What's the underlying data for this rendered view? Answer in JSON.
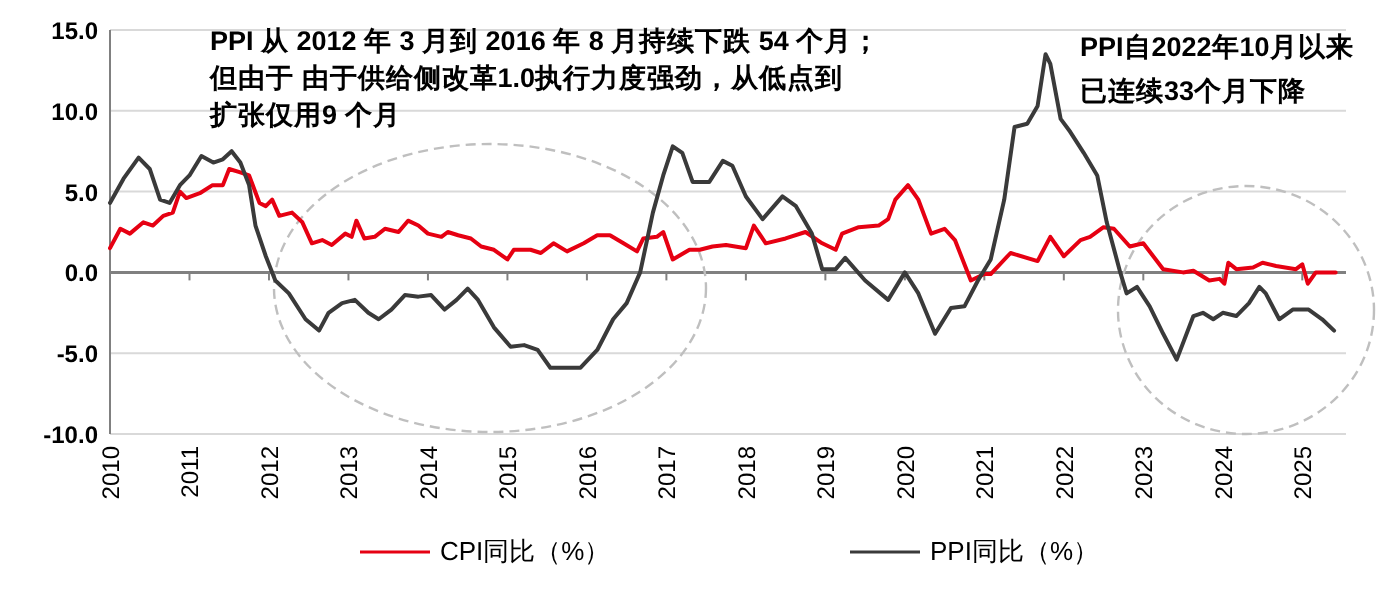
{
  "chart_data": {
    "type": "line",
    "xlim": [
      2010,
      2025.55
    ],
    "xticks": [
      2010,
      2011,
      2012,
      2013,
      2014,
      2015,
      2016,
      2017,
      2018,
      2019,
      2020,
      2021,
      2022,
      2023,
      2024,
      2025
    ],
    "ylim": [
      -10,
      15
    ],
    "yticks": [
      {
        "value": -10,
        "label": "-10.0"
      },
      {
        "value": -5,
        "label": "-5.0"
      },
      {
        "value": 0,
        "label": "0.0"
      },
      {
        "value": 5,
        "label": "5.0"
      },
      {
        "value": 10,
        "label": "10.0"
      },
      {
        "value": 15,
        "label": "15.0"
      }
    ],
    "grid": "y",
    "legend": "bottom",
    "marker": "none",
    "line_style": "solid",
    "annotations": [
      "PPI 从 2012 年 3 月到 2016 年 8 月持续下跌 54 个月；",
      "但由于 由于供给侧改革1.0执行力度强劲，从低点到",
      "扩张仅用9 个月",
      "PPI自2022年10月以来",
      "已连续33个月下降"
    ],
    "series": [
      {
        "name": "CPI同比（%）",
        "color": "#e60012",
        "x": [
          2010.0,
          2010.13,
          2010.25,
          2010.42,
          2010.54,
          2010.67,
          2010.79,
          2010.88,
          2010.96,
          2011.13,
          2011.29,
          2011.42,
          2011.5,
          2011.63,
          2011.75,
          2011.88,
          2011.96,
          2012.04,
          2012.13,
          2012.29,
          2012.42,
          2012.54,
          2012.67,
          2012.79,
          2012.96,
          2013.04,
          2013.1,
          2013.2,
          2013.33,
          2013.46,
          2013.63,
          2013.75,
          2013.88,
          2014.0,
          2014.17,
          2014.25,
          2014.38,
          2014.54,
          2014.67,
          2014.83,
          2015.0,
          2015.08,
          2015.29,
          2015.42,
          2015.58,
          2015.75,
          2015.96,
          2016.13,
          2016.29,
          2016.46,
          2016.63,
          2016.71,
          2016.88,
          2016.96,
          2017.08,
          2017.29,
          2017.42,
          2017.58,
          2017.75,
          2018.0,
          2018.1,
          2018.25,
          2018.5,
          2018.75,
          2018.96,
          2019.13,
          2019.21,
          2019.42,
          2019.67,
          2019.79,
          2019.88,
          2020.04,
          2020.17,
          2020.33,
          2020.5,
          2020.63,
          2020.83,
          2021.0,
          2021.08,
          2021.33,
          2021.67,
          2021.83,
          2022.0,
          2022.21,
          2022.33,
          2022.5,
          2022.63,
          2022.83,
          2023.0,
          2023.25,
          2023.5,
          2023.63,
          2023.83,
          2023.96,
          2024.02,
          2024.07,
          2024.17,
          2024.38,
          2024.5,
          2024.67,
          2024.92,
          2025.0,
          2025.07,
          2025.17,
          2025.42
        ],
        "values": [
          1.5,
          2.7,
          2.4,
          3.1,
          2.9,
          3.5,
          3.7,
          5.0,
          4.6,
          4.9,
          5.4,
          5.4,
          6.4,
          6.2,
          6.0,
          4.3,
          4.1,
          4.5,
          3.5,
          3.7,
          3.1,
          1.8,
          2.0,
          1.7,
          2.4,
          2.2,
          3.2,
          2.1,
          2.2,
          2.7,
          2.5,
          3.2,
          2.9,
          2.4,
          2.2,
          2.5,
          2.3,
          2.1,
          1.6,
          1.4,
          0.8,
          1.4,
          1.4,
          1.2,
          1.8,
          1.3,
          1.8,
          2.3,
          2.3,
          1.8,
          1.3,
          2.1,
          2.2,
          2.5,
          0.8,
          1.4,
          1.4,
          1.6,
          1.7,
          1.5,
          2.9,
          1.8,
          2.1,
          2.5,
          1.8,
          1.4,
          2.4,
          2.8,
          2.9,
          3.3,
          4.5,
          5.4,
          4.5,
          2.4,
          2.7,
          2.0,
          -0.5,
          -0.1,
          -0.1,
          1.2,
          0.7,
          2.2,
          1.0,
          2.0,
          2.2,
          2.8,
          2.7,
          1.6,
          1.8,
          0.2,
          0.0,
          0.1,
          -0.5,
          -0.4,
          -0.7,
          0.6,
          0.2,
          0.3,
          0.6,
          0.4,
          0.2,
          0.5,
          -0.7,
          0.0,
          0.0
        ]
      },
      {
        "name": "PPI同比（%）",
        "color": "#3a3a3a",
        "x": [
          2010.0,
          2010.17,
          2010.36,
          2010.5,
          2010.63,
          2010.75,
          2010.88,
          2011.0,
          2011.15,
          2011.3,
          2011.42,
          2011.53,
          2011.64,
          2011.75,
          2011.83,
          2011.96,
          2012.08,
          2012.25,
          2012.46,
          2012.63,
          2012.75,
          2012.92,
          2013.08,
          2013.25,
          2013.38,
          2013.54,
          2013.71,
          2013.88,
          2014.04,
          2014.21,
          2014.36,
          2014.5,
          2014.63,
          2014.83,
          2015.04,
          2015.21,
          2015.38,
          2015.54,
          2015.92,
          2016.13,
          2016.33,
          2016.5,
          2016.67,
          2016.83,
          2016.96,
          2017.08,
          2017.2,
          2017.33,
          2017.54,
          2017.71,
          2017.83,
          2018.0,
          2018.21,
          2018.46,
          2018.63,
          2018.83,
          2018.96,
          2019.13,
          2019.25,
          2019.5,
          2019.79,
          2020.0,
          2020.17,
          2020.38,
          2020.58,
          2020.75,
          2020.92,
          2021.08,
          2021.25,
          2021.38,
          2021.54,
          2021.67,
          2021.77,
          2021.83,
          2021.96,
          2022.08,
          2022.25,
          2022.42,
          2022.54,
          2022.71,
          2022.79,
          2022.92,
          2023.08,
          2023.25,
          2023.42,
          2023.63,
          2023.75,
          2023.88,
          2024.0,
          2024.17,
          2024.33,
          2024.46,
          2024.54,
          2024.71,
          2024.88,
          2025.08,
          2025.25,
          2025.4
        ],
        "values": [
          4.3,
          5.8,
          7.1,
          6.4,
          4.5,
          4.3,
          5.4,
          6.0,
          7.2,
          6.8,
          7.0,
          7.5,
          6.8,
          5.4,
          2.9,
          1.0,
          -0.5,
          -1.3,
          -2.9,
          -3.6,
          -2.5,
          -1.9,
          -1.7,
          -2.5,
          -2.9,
          -2.3,
          -1.4,
          -1.5,
          -1.4,
          -2.3,
          -1.7,
          -1.0,
          -1.7,
          -3.4,
          -4.6,
          -4.5,
          -4.8,
          -5.9,
          -5.9,
          -4.8,
          -2.9,
          -1.9,
          0.0,
          3.7,
          6.0,
          7.8,
          7.4,
          5.6,
          5.6,
          6.9,
          6.6,
          4.7,
          3.3,
          4.7,
          4.1,
          2.4,
          0.2,
          0.2,
          0.9,
          -0.5,
          -1.7,
          0.0,
          -1.3,
          -3.8,
          -2.2,
          -2.1,
          -0.5,
          0.8,
          4.5,
          9.0,
          9.2,
          10.3,
          13.5,
          12.9,
          9.5,
          8.7,
          7.4,
          6.0,
          3.1,
          0.0,
          -1.3,
          -0.9,
          -2.1,
          -3.8,
          -5.4,
          -2.7,
          -2.5,
          -2.9,
          -2.5,
          -2.7,
          -1.9,
          -0.9,
          -1.3,
          -2.9,
          -2.3,
          -2.3,
          -2.9,
          -3.6
        ]
      }
    ]
  }
}
